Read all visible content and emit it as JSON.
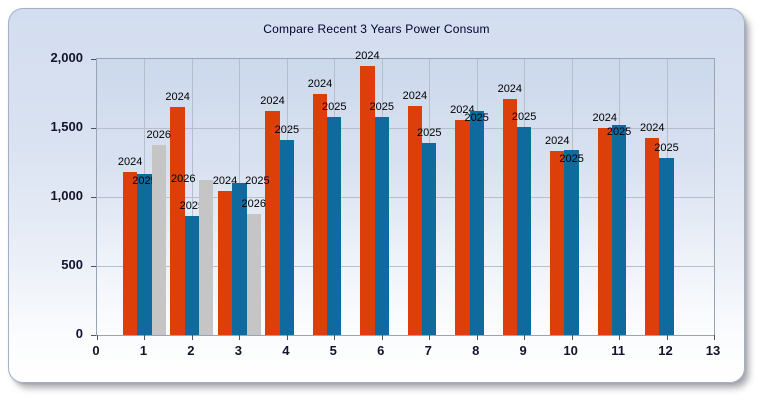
{
  "chart_data": {
    "type": "bar",
    "title": "Compare Recent 3 Years Power Consum",
    "x": [
      1,
      2,
      3,
      4,
      5,
      6,
      7,
      8,
      9,
      10,
      11,
      12
    ],
    "series": [
      {
        "name": "2024",
        "color": "#dc3f0a",
        "values": [
          1180,
          1650,
          1040,
          1620,
          1750,
          1950,
          1660,
          1560,
          1710,
          1330,
          1500,
          1430
        ]
      },
      {
        "name": "2025",
        "color": "#0f6a9d",
        "values": [
          1170,
          860,
          1100,
          1410,
          1580,
          1580,
          1390,
          1620,
          1510,
          1340,
          1520,
          1280
        ]
      },
      {
        "name": "2026",
        "color": "#c5c5c5",
        "values": [
          1380,
          1120,
          880,
          null,
          null,
          null,
          null,
          null,
          null,
          null,
          null,
          null
        ]
      }
    ],
    "xlim": [
      0,
      13
    ],
    "ylim": [
      0,
      2000
    ],
    "x_ticks": [
      0,
      1,
      2,
      3,
      4,
      5,
      6,
      7,
      8,
      9,
      10,
      11,
      12,
      13
    ],
    "x_tick_labels": [
      "0",
      "1",
      "2",
      "3",
      "4",
      "5",
      "6",
      "7",
      "8",
      "9",
      "10",
      "11",
      "12",
      "13"
    ],
    "y_ticks": [
      0,
      500,
      1000,
      1500,
      2000
    ],
    "y_tick_labels": [
      "0",
      "500",
      "1,000",
      "1,500",
      "2,000"
    ],
    "grid": true,
    "legend": "none",
    "point_labels": "each bar is annotated above with its series year",
    "label_offsets": {
      "1-2025": [
        0,
        17
      ],
      "2-2026": [
        -23,
        9
      ],
      "3-2025": [
        18,
        8
      ],
      "8-2025": [
        0,
        17
      ],
      "10-2025": [
        0,
        19
      ],
      "11-2025": [
        0,
        17
      ]
    },
    "colors": {
      "grid": "#b5bfcb",
      "plot_border": "#98a4b2",
      "tick": "#4a5560",
      "axis_label": "#13132b",
      "title": "#000030",
      "panel_border": "#a3b0c4"
    }
  }
}
